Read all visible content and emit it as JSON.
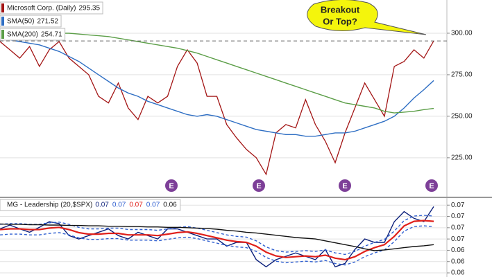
{
  "chart_data": [
    {
      "type": "line",
      "series": [
        {
          "name": "Microsoft Corp. (Daily)",
          "color": "#a31515",
          "values": [
            295,
            290,
            285,
            292,
            280,
            290,
            295,
            285,
            280,
            275,
            262,
            258,
            270,
            255,
            248,
            262,
            258,
            262,
            280,
            290,
            282,
            262,
            262,
            245,
            237,
            230,
            225,
            215,
            240,
            245,
            243,
            260,
            245,
            235,
            222,
            240,
            255,
            270,
            260,
            250,
            280,
            283,
            290,
            285,
            295.35
          ]
        },
        {
          "name": "SMA(50)",
          "color": "#2f6fc4",
          "values": [
            297,
            296,
            295,
            294,
            293,
            291,
            289,
            286,
            283,
            279,
            275,
            271,
            267,
            264,
            262,
            259,
            257,
            255,
            253,
            251,
            250,
            251,
            250,
            248,
            246,
            244,
            242,
            241,
            240,
            239,
            239,
            238,
            238,
            239,
            240,
            240,
            241,
            243,
            245,
            247,
            250,
            255,
            261,
            266,
            271.52
          ]
        },
        {
          "name": "SMA(200)",
          "color": "#5c9e48",
          "values": [
            296,
            297,
            298,
            299,
            299.5,
            300,
            300,
            300,
            299.5,
            299,
            298.5,
            298,
            297,
            296,
            295,
            294,
            293,
            292,
            291,
            289.5,
            288,
            286,
            284,
            282,
            280,
            278,
            276,
            274,
            272,
            270,
            268,
            266,
            264,
            262,
            260,
            258,
            257,
            256,
            255,
            253,
            252,
            252.5,
            253,
            254,
            254.71
          ]
        }
      ],
      "ylim": [
        202,
        320
      ],
      "yticks": [
        {
          "value": 300,
          "label": "300.00"
        },
        {
          "value": 275,
          "label": "275.00"
        },
        {
          "value": 250,
          "label": "250.00"
        },
        {
          "value": 225,
          "label": "225.00"
        }
      ],
      "grid": true,
      "annotation": [
        "Breakout",
        "Or Top?"
      ],
      "earnings_markers": [
        "E",
        "E",
        "E",
        "E"
      ]
    },
    {
      "type": "line",
      "title": "MG - Leadership (20,$SPX)",
      "readout": [
        "0.07",
        "0.07",
        "0.07",
        "0.07",
        "0.06"
      ],
      "series": [
        {
          "color": "#0b1f7a",
          "values": [
            0.0682,
            0.0692,
            0.0682,
            0.0673,
            0.0686,
            0.0701,
            0.0696,
            0.0664,
            0.0655,
            0.0664,
            0.0673,
            0.0682,
            0.0664,
            0.0655,
            0.0673,
            0.0664,
            0.0655,
            0.0682,
            0.0682,
            0.0673,
            0.0664,
            0.0655,
            0.0655,
            0.0636,
            0.0646,
            0.0646,
            0.06,
            0.0581,
            0.06,
            0.0609,
            0.0618,
            0.0609,
            0.06,
            0.0627,
            0.0581,
            0.059,
            0.0627,
            0.0655,
            0.0646,
            0.0646,
            0.0701,
            0.0728,
            0.071,
            0.0701,
            0.0741
          ]
        },
        {
          "color": "#2f5fd0",
          "dashed": true,
          "values": [
            0.0694,
            0.0696,
            0.0696,
            0.0694,
            0.0694,
            0.0698,
            0.07,
            0.0694,
            0.0686,
            0.0682,
            0.0682,
            0.0684,
            0.0684,
            0.068,
            0.068,
            0.068,
            0.0678,
            0.0682,
            0.0686,
            0.0688,
            0.0684,
            0.0678,
            0.0672,
            0.0666,
            0.0662,
            0.066,
            0.065,
            0.0634,
            0.0624,
            0.062,
            0.0622,
            0.0624,
            0.0622,
            0.0626,
            0.0618,
            0.0614,
            0.0622,
            0.0636,
            0.0646,
            0.0654,
            0.0676,
            0.0704,
            0.0716,
            0.0718,
            0.0716
          ]
        },
        {
          "color": "#e0201a",
          "values": [
            0.068,
            0.0682,
            0.0682,
            0.068,
            0.068,
            0.0684,
            0.0686,
            0.068,
            0.0672,
            0.0668,
            0.0668,
            0.067,
            0.067,
            0.0666,
            0.0666,
            0.0666,
            0.0664,
            0.0668,
            0.0672,
            0.0674,
            0.067,
            0.0664,
            0.0658,
            0.0652,
            0.0648,
            0.0646,
            0.0636,
            0.062,
            0.061,
            0.0606,
            0.0608,
            0.061,
            0.0608,
            0.0612,
            0.0604,
            0.06,
            0.0608,
            0.0622,
            0.0632,
            0.064,
            0.0662,
            0.069,
            0.0702,
            0.0704,
            0.0702
          ]
        },
        {
          "color": "#2f5fd0",
          "dashed": true,
          "values": [
            0.0666,
            0.0668,
            0.0668,
            0.0666,
            0.0666,
            0.067,
            0.0672,
            0.0666,
            0.0658,
            0.0654,
            0.0654,
            0.0656,
            0.0656,
            0.0652,
            0.0652,
            0.0652,
            0.065,
            0.0654,
            0.0658,
            0.066,
            0.0656,
            0.065,
            0.0644,
            0.0638,
            0.0634,
            0.0632,
            0.0622,
            0.0606,
            0.0596,
            0.0592,
            0.0594,
            0.0596,
            0.0594,
            0.0598,
            0.059,
            0.0586,
            0.0594,
            0.0608,
            0.0618,
            0.0626,
            0.0648,
            0.0676,
            0.0688,
            0.069,
            0.0688
          ]
        },
        {
          "color": "#111111",
          "values": [
            0.0695,
            0.0694,
            0.0694,
            0.0693,
            0.0693,
            0.0692,
            0.0692,
            0.0691,
            0.0691,
            0.069,
            0.069,
            0.0689,
            0.0689,
            0.0688,
            0.0688,
            0.0687,
            0.0687,
            0.0686,
            0.0686,
            0.0685,
            0.0684,
            0.0683,
            0.0681,
            0.0678,
            0.0676,
            0.0673,
            0.0671,
            0.0668,
            0.0665,
            0.0662,
            0.0659,
            0.0657,
            0.0655,
            0.065,
            0.0645,
            0.064,
            0.0635,
            0.0629,
            0.0624,
            0.0626,
            0.0629,
            0.0632,
            0.0635,
            0.0637,
            0.064
          ]
        }
      ],
      "ylim": [
        0.0554,
        0.0762
      ],
      "yticks": [
        {
          "value": 0.0745,
          "label": "0.07"
        },
        {
          "value": 0.0715,
          "label": "0.07"
        },
        {
          "value": 0.0685,
          "label": "0.07"
        },
        {
          "value": 0.0655,
          "label": "0.07"
        },
        {
          "value": 0.0625,
          "label": "0.06"
        },
        {
          "value": 0.0595,
          "label": "0.06"
        },
        {
          "value": 0.0565,
          "label": "0.06"
        }
      ],
      "grid": true
    }
  ]
}
